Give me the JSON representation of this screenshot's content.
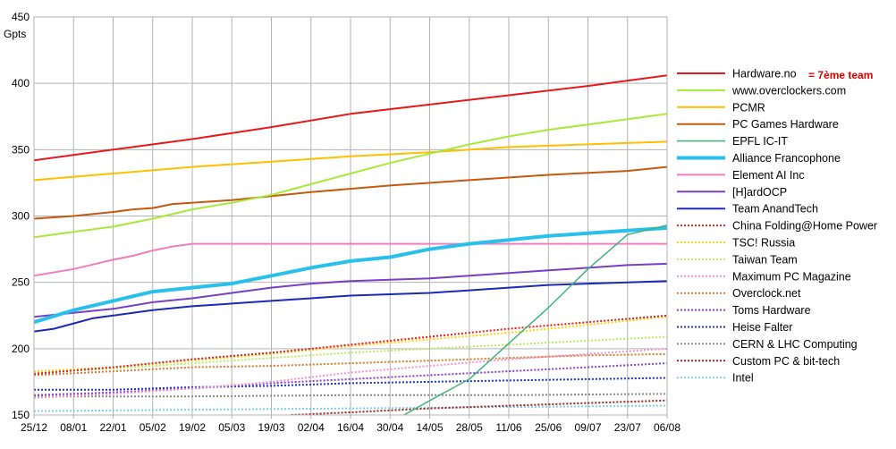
{
  "chart_data": {
    "type": "line",
    "title": "",
    "ylabel": "Gpts",
    "xlabel": "",
    "ylim": [
      150,
      450
    ],
    "yticks": [
      150,
      200,
      250,
      300,
      350,
      400,
      450
    ],
    "xlim": [
      0,
      32
    ],
    "xticks": [
      {
        "x": 0,
        "label": "25/12"
      },
      {
        "x": 2,
        "label": "08/01"
      },
      {
        "x": 4,
        "label": "22/01"
      },
      {
        "x": 6,
        "label": "05/02"
      },
      {
        "x": 8,
        "label": "19/02"
      },
      {
        "x": 10,
        "label": "05/03"
      },
      {
        "x": 12,
        "label": "19/03"
      },
      {
        "x": 14,
        "label": "02/04"
      },
      {
        "x": 16,
        "label": "16/04"
      },
      {
        "x": 18,
        "label": "30/04"
      },
      {
        "x": 20,
        "label": "14/05"
      },
      {
        "x": 22,
        "label": "28/05"
      },
      {
        "x": 24,
        "label": "11/06"
      },
      {
        "x": 26,
        "label": "25/06"
      },
      {
        "x": 28,
        "label": "09/07"
      },
      {
        "x": 30,
        "label": "23/07"
      },
      {
        "x": 32,
        "label": "06/08"
      }
    ],
    "grid": true,
    "legend_position": "right",
    "annotation": {
      "text": "= 7ème team",
      "color": "#e00000"
    },
    "series": [
      {
        "name": "Hardware.no",
        "color": "#e8191b",
        "width": 2,
        "dash": "solid",
        "points": [
          [
            0,
            342
          ],
          [
            4,
            350
          ],
          [
            8,
            358
          ],
          [
            12,
            367
          ],
          [
            16,
            377
          ],
          [
            20,
            384
          ],
          [
            24,
            391
          ],
          [
            28,
            398
          ],
          [
            32,
            406
          ]
        ]
      },
      {
        "name": "www.overclockers.com",
        "color": "#a6ea3a",
        "width": 2,
        "dash": "solid",
        "points": [
          [
            0,
            284
          ],
          [
            2,
            288
          ],
          [
            4,
            292
          ],
          [
            6,
            298
          ],
          [
            8,
            305
          ],
          [
            10,
            310
          ],
          [
            12,
            316
          ],
          [
            14,
            324
          ],
          [
            16,
            332
          ],
          [
            18,
            340
          ],
          [
            20,
            347
          ],
          [
            22,
            354
          ],
          [
            24,
            360
          ],
          [
            26,
            365
          ],
          [
            28,
            369
          ],
          [
            30,
            373
          ],
          [
            32,
            377
          ]
        ]
      },
      {
        "name": "PCMR",
        "color": "#ffc000",
        "width": 2,
        "dash": "solid",
        "points": [
          [
            0,
            327
          ],
          [
            4,
            332
          ],
          [
            8,
            337
          ],
          [
            12,
            341
          ],
          [
            16,
            345
          ],
          [
            20,
            348
          ],
          [
            24,
            352
          ],
          [
            28,
            354
          ],
          [
            32,
            356
          ]
        ]
      },
      {
        "name": "PC Games Hardware",
        "color": "#c55a11",
        "width": 2,
        "dash": "solid",
        "points": [
          [
            0,
            298
          ],
          [
            2,
            300
          ],
          [
            4,
            303
          ],
          [
            5,
            305
          ],
          [
            6,
            306
          ],
          [
            7,
            309
          ],
          [
            10,
            312
          ],
          [
            14,
            318
          ],
          [
            18,
            323
          ],
          [
            22,
            327
          ],
          [
            26,
            331
          ],
          [
            30,
            334
          ],
          [
            32,
            337
          ]
        ]
      },
      {
        "name": "EPFL IC-IT",
        "color": "#3fb27f",
        "width": 1.5,
        "dash": "solid",
        "points": [
          [
            18.7,
            150
          ],
          [
            20.5,
            165
          ],
          [
            22,
            177
          ],
          [
            24,
            204
          ],
          [
            26,
            231
          ],
          [
            28,
            260
          ],
          [
            30,
            286
          ],
          [
            32,
            293
          ]
        ]
      },
      {
        "name": "Alliance Francophone",
        "color": "#29c1ec",
        "width": 4,
        "dash": "solid",
        "points": [
          [
            0,
            220
          ],
          [
            2,
            229
          ],
          [
            4,
            236
          ],
          [
            6,
            243
          ],
          [
            8,
            246
          ],
          [
            10,
            249
          ],
          [
            12,
            255
          ],
          [
            14,
            261
          ],
          [
            16,
            266
          ],
          [
            18,
            269
          ],
          [
            20,
            275
          ],
          [
            22,
            279
          ],
          [
            24,
            282
          ],
          [
            26,
            285
          ],
          [
            28,
            287
          ],
          [
            30,
            289
          ],
          [
            32,
            291
          ]
        ]
      },
      {
        "name": "Element AI Inc",
        "color": "#f07fbf",
        "width": 2,
        "dash": "solid",
        "points": [
          [
            0,
            255
          ],
          [
            2,
            260
          ],
          [
            4,
            267
          ],
          [
            5,
            270
          ],
          [
            6,
            274
          ],
          [
            7,
            277
          ],
          [
            8,
            279
          ],
          [
            32,
            279
          ]
        ]
      },
      {
        "name": "[H]ardOCP",
        "color": "#7b3fc6",
        "width": 2,
        "dash": "solid",
        "points": [
          [
            0,
            224
          ],
          [
            2,
            227
          ],
          [
            4,
            230
          ],
          [
            6,
            235
          ],
          [
            8,
            238
          ],
          [
            10,
            242
          ],
          [
            12,
            246
          ],
          [
            14,
            249
          ],
          [
            16,
            251
          ],
          [
            18,
            252
          ],
          [
            20,
            253
          ],
          [
            22,
            255
          ],
          [
            24,
            257
          ],
          [
            26,
            259
          ],
          [
            28,
            261
          ],
          [
            30,
            263
          ],
          [
            32,
            264
          ]
        ]
      },
      {
        "name": "Team AnandTech",
        "color": "#1c2ab8",
        "width": 2,
        "dash": "solid",
        "points": [
          [
            0,
            213
          ],
          [
            1,
            215
          ],
          [
            2,
            219
          ],
          [
            3,
            223
          ],
          [
            4,
            225
          ],
          [
            5,
            227
          ],
          [
            6,
            229
          ],
          [
            8,
            232
          ],
          [
            10,
            234
          ],
          [
            12,
            236
          ],
          [
            14,
            238
          ],
          [
            16,
            240
          ],
          [
            18,
            241
          ],
          [
            20,
            242
          ],
          [
            22,
            244
          ],
          [
            24,
            246
          ],
          [
            26,
            248
          ],
          [
            28,
            249
          ],
          [
            30,
            250
          ],
          [
            32,
            251
          ]
        ]
      },
      {
        "name": "China Folding@Home Power",
        "color": "#e3201c",
        "width": 2,
        "dash": "dotted",
        "points": [
          [
            0,
            181
          ],
          [
            4,
            186
          ],
          [
            8,
            192
          ],
          [
            12,
            197
          ],
          [
            16,
            203
          ],
          [
            20,
            209
          ],
          [
            24,
            215
          ],
          [
            28,
            220
          ],
          [
            32,
            225
          ]
        ]
      },
      {
        "name": "TSC! Russia",
        "color": "#ffd21e",
        "width": 2,
        "dash": "dotted",
        "points": [
          [
            0,
            183
          ],
          [
            4,
            186
          ],
          [
            8,
            191
          ],
          [
            12,
            196
          ],
          [
            16,
            202
          ],
          [
            20,
            207
          ],
          [
            24,
            212
          ],
          [
            28,
            218
          ],
          [
            32,
            224
          ]
        ]
      },
      {
        "name": "Taiwan Team",
        "color": "#b7ee5e",
        "width": 2,
        "dash": "dotted",
        "points": [
          [
            0,
            182
          ],
          [
            4,
            185
          ],
          [
            8,
            189
          ],
          [
            12,
            193
          ],
          [
            16,
            197
          ],
          [
            20,
            200
          ],
          [
            24,
            203
          ],
          [
            28,
            206
          ],
          [
            32,
            209
          ]
        ]
      },
      {
        "name": "Maximum PC Magazine",
        "color": "#f594cc",
        "width": 2,
        "dash": "dotted",
        "points": [
          [
            0,
            163
          ],
          [
            4,
            166
          ],
          [
            8,
            170
          ],
          [
            12,
            175
          ],
          [
            16,
            182
          ],
          [
            20,
            187
          ],
          [
            24,
            192
          ],
          [
            28,
            196
          ],
          [
            32,
            200
          ]
        ]
      },
      {
        "name": "Overclock.net",
        "color": "#d97a2b",
        "width": 2,
        "dash": "dotted",
        "points": [
          [
            0,
            180
          ],
          [
            4,
            183
          ],
          [
            8,
            186
          ],
          [
            12,
            187
          ],
          [
            16,
            189
          ],
          [
            20,
            191
          ],
          [
            24,
            193
          ],
          [
            28,
            195
          ],
          [
            32,
            196
          ]
        ]
      },
      {
        "name": "Toms Hardware",
        "color": "#8a3fd6",
        "width": 2,
        "dash": "dotted",
        "points": [
          [
            0,
            165
          ],
          [
            4,
            167
          ],
          [
            8,
            170
          ],
          [
            12,
            174
          ],
          [
            16,
            177
          ],
          [
            20,
            180
          ],
          [
            24,
            183
          ],
          [
            28,
            186
          ],
          [
            32,
            189
          ]
        ]
      },
      {
        "name": "Heise Falter",
        "color": "#1e2ed1",
        "width": 2,
        "dash": "dotted",
        "points": [
          [
            0,
            169
          ],
          [
            4,
            169
          ],
          [
            8,
            171
          ],
          [
            12,
            172
          ],
          [
            16,
            174
          ],
          [
            20,
            175
          ],
          [
            24,
            176
          ],
          [
            28,
            177
          ],
          [
            32,
            178
          ]
        ]
      },
      {
        "name": "CERN & LHC Computing",
        "color": "#8c8c8c",
        "width": 2,
        "dash": "dotted",
        "points": [
          [
            0,
            164
          ],
          [
            8,
            164
          ],
          [
            16,
            165
          ],
          [
            24,
            165
          ],
          [
            32,
            166
          ]
        ]
      },
      {
        "name": "Custom PC & bit-tech",
        "color": "#a8201a",
        "width": 2,
        "dash": "dotted",
        "points": [
          [
            13,
            150
          ],
          [
            16,
            152
          ],
          [
            20,
            155
          ],
          [
            24,
            157
          ],
          [
            28,
            159
          ],
          [
            32,
            161
          ]
        ]
      },
      {
        "name": "Intel",
        "color": "#7fd1f0",
        "width": 2,
        "dash": "dotted",
        "points": [
          [
            0,
            153
          ],
          [
            8,
            154
          ],
          [
            16,
            155
          ],
          [
            24,
            156
          ],
          [
            32,
            157
          ]
        ]
      }
    ]
  }
}
